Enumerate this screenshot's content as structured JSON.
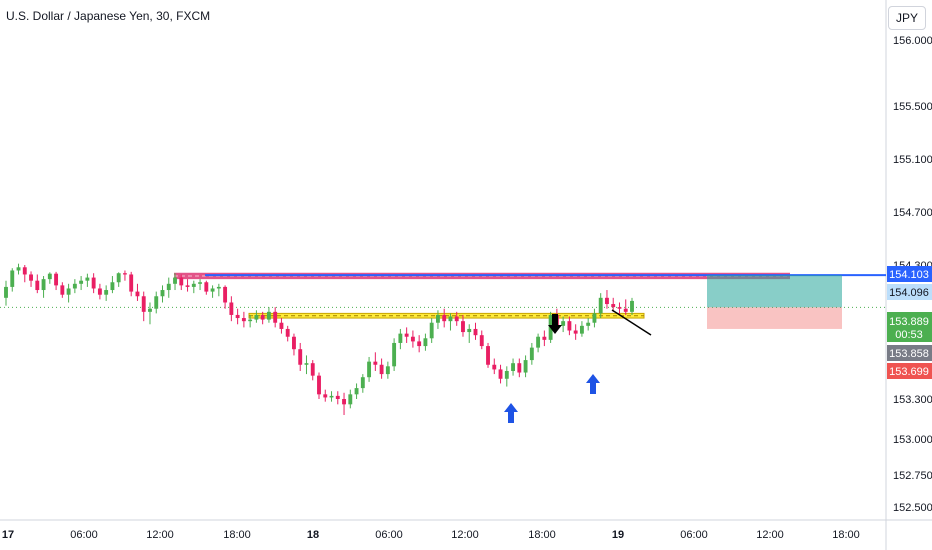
{
  "chart_data": {
    "type": "candlestick",
    "title": "U.S. Dollar / Japanese Yen, 30, FXCM",
    "currency_label": "JPY",
    "y_ticks": [
      "156.000",
      "155.500",
      "155.100",
      "154.700",
      "154.300",
      "154.103",
      "153.300",
      "153.000",
      "152.750",
      "152.500"
    ],
    "x_ticks": [
      "17",
      "06:00",
      "12:00",
      "18:00",
      "18",
      "06:00",
      "12:00",
      "18:00",
      "19",
      "06:00",
      "12:00",
      "18:00"
    ],
    "price_labels": {
      "resistance": "154.103",
      "line": "154.096",
      "current": "153.889",
      "countdown": "00:53",
      "bid": "153.858",
      "stop": "153.699"
    },
    "colors": {
      "up": "#26a69a",
      "down": "#ef5350",
      "candle_up": "#4caf50",
      "candle_down": "#e91e63",
      "resistance_zone": "#d81b60",
      "support_zone": "#ffeb3b",
      "blue_line": "#2962ff",
      "target_zone": "#26a69a",
      "stop_zone": "#ef5350",
      "arrow_blue": "#1e53e5",
      "arrow_black": "#000000"
    },
    "candles": [
      [
        153.95,
        154.06,
        153.9,
        154.02
      ],
      [
        154.02,
        154.23,
        153.99,
        154.18
      ],
      [
        154.18,
        154.31,
        154.1,
        154.25
      ],
      [
        154.25,
        154.3,
        154.05,
        154.1
      ],
      [
        154.1,
        154.16,
        154.02,
        154.06
      ],
      [
        154.06,
        154.1,
        153.98,
        154.0
      ],
      [
        154.0,
        154.09,
        153.95,
        154.07
      ],
      [
        154.07,
        154.14,
        154.04,
        154.11
      ],
      [
        154.11,
        154.15,
        154.0,
        154.03
      ],
      [
        154.03,
        154.05,
        153.95,
        153.97
      ],
      [
        153.97,
        154.04,
        153.92,
        154.01
      ],
      [
        154.01,
        154.07,
        153.98,
        154.04
      ],
      [
        154.04,
        154.09,
        154.0,
        154.06
      ],
      [
        154.06,
        154.11,
        154.02,
        154.08
      ],
      [
        154.08,
        154.12,
        153.98,
        154.01
      ],
      [
        154.01,
        154.04,
        153.94,
        153.97
      ],
      [
        153.97,
        154.03,
        153.93,
        154.0
      ],
      [
        154.0,
        154.09,
        153.98,
        154.05
      ],
      [
        154.05,
        154.14,
        154.02,
        154.12
      ],
      [
        154.12,
        154.18,
        154.06,
        154.1
      ],
      [
        154.1,
        154.15,
        153.96,
        153.99
      ],
      [
        153.99,
        154.04,
        153.93,
        153.96
      ],
      [
        153.96,
        153.99,
        153.8,
        153.86
      ],
      [
        153.86,
        153.92,
        153.78,
        153.88
      ],
      [
        153.88,
        153.99,
        153.85,
        153.96
      ],
      [
        153.96,
        154.03,
        153.92,
        154.0
      ],
      [
        154.0,
        154.08,
        153.95,
        154.04
      ],
      [
        154.04,
        154.12,
        154.0,
        154.08
      ],
      [
        154.08,
        154.1,
        154.0,
        154.03
      ],
      [
        154.03,
        154.07,
        153.99,
        154.02
      ],
      [
        154.02,
        154.06,
        153.98,
        154.04
      ],
      [
        154.04,
        154.07,
        154.0,
        154.05
      ],
      [
        154.05,
        154.06,
        153.97,
        153.99
      ],
      [
        153.99,
        154.03,
        153.95,
        154.01
      ],
      [
        154.01,
        154.04,
        153.96,
        154.02
      ],
      [
        154.02,
        154.03,
        153.88,
        153.92
      ],
      [
        153.92,
        153.96,
        153.8,
        153.84
      ],
      [
        153.84,
        153.88,
        153.78,
        153.82
      ],
      [
        153.82,
        153.86,
        153.76,
        153.8
      ],
      [
        153.8,
        153.84,
        153.76,
        153.81
      ],
      [
        153.81,
        153.87,
        153.79,
        153.84
      ],
      [
        153.84,
        153.86,
        153.78,
        153.81
      ],
      [
        153.81,
        153.89,
        153.79,
        153.86
      ],
      [
        153.86,
        153.89,
        153.76,
        153.79
      ],
      [
        153.79,
        153.82,
        153.72,
        153.75
      ],
      [
        153.75,
        153.77,
        153.67,
        153.7
      ],
      [
        153.7,
        153.72,
        153.58,
        153.62
      ],
      [
        153.62,
        153.66,
        153.48,
        153.52
      ],
      [
        153.52,
        153.58,
        153.46,
        153.53
      ],
      [
        153.53,
        153.55,
        153.42,
        153.45
      ],
      [
        153.45,
        153.47,
        153.3,
        153.33
      ],
      [
        153.33,
        153.36,
        153.28,
        153.31
      ],
      [
        153.31,
        153.35,
        153.28,
        153.32
      ],
      [
        153.32,
        153.35,
        153.26,
        153.3
      ],
      [
        153.3,
        153.34,
        153.18,
        153.26
      ],
      [
        153.26,
        153.36,
        153.23,
        153.33
      ],
      [
        153.33,
        153.4,
        153.3,
        153.37
      ],
      [
        153.37,
        153.46,
        153.34,
        153.44
      ],
      [
        153.44,
        153.57,
        153.41,
        153.54
      ],
      [
        153.54,
        153.6,
        153.48,
        153.52
      ],
      [
        153.52,
        153.56,
        153.43,
        153.46
      ],
      [
        153.46,
        153.54,
        153.43,
        153.51
      ],
      [
        153.51,
        153.69,
        153.48,
        153.66
      ],
      [
        153.66,
        153.75,
        153.62,
        153.72
      ],
      [
        153.72,
        153.76,
        153.66,
        153.7
      ],
      [
        153.7,
        153.74,
        153.63,
        153.67
      ],
      [
        153.67,
        153.71,
        153.6,
        153.64
      ],
      [
        153.64,
        153.72,
        153.61,
        153.69
      ],
      [
        153.69,
        153.82,
        153.66,
        153.79
      ],
      [
        153.79,
        153.87,
        153.75,
        153.84
      ],
      [
        153.84,
        153.88,
        153.76,
        153.8
      ],
      [
        153.8,
        153.85,
        153.74,
        153.83
      ],
      [
        153.83,
        153.86,
        153.77,
        153.8
      ],
      [
        153.8,
        153.84,
        153.7,
        153.73
      ],
      [
        153.73,
        153.78,
        153.66,
        153.75
      ],
      [
        153.75,
        153.79,
        153.68,
        153.71
      ],
      [
        153.71,
        153.74,
        153.62,
        153.64
      ],
      [
        153.64,
        153.66,
        153.5,
        153.52
      ],
      [
        153.52,
        153.56,
        153.46,
        153.49
      ],
      [
        153.49,
        153.52,
        153.4,
        153.43
      ],
      [
        153.43,
        153.51,
        153.38,
        153.48
      ],
      [
        153.48,
        153.56,
        153.45,
        153.53
      ],
      [
        153.53,
        153.56,
        153.44,
        153.47
      ],
      [
        153.47,
        153.58,
        153.44,
        153.55
      ],
      [
        153.55,
        153.66,
        153.52,
        153.63
      ],
      [
        153.63,
        153.72,
        153.6,
        153.7
      ],
      [
        153.7,
        153.74,
        153.64,
        153.68
      ],
      [
        153.68,
        153.86,
        153.66,
        153.84
      ],
      [
        153.84,
        153.88,
        153.74,
        153.77
      ],
      [
        153.77,
        153.83,
        153.73,
        153.8
      ],
      [
        153.8,
        153.83,
        153.71,
        153.74
      ],
      [
        153.74,
        153.78,
        153.68,
        153.72
      ],
      [
        153.72,
        153.8,
        153.7,
        153.77
      ],
      [
        153.77,
        153.82,
        153.74,
        153.79
      ],
      [
        153.79,
        153.88,
        153.76,
        153.85
      ],
      [
        153.85,
        153.98,
        153.82,
        153.95
      ],
      [
        153.95,
        154.0,
        153.88,
        153.91
      ],
      [
        153.91,
        153.95,
        153.86,
        153.89
      ],
      [
        153.89,
        153.92,
        153.84,
        153.88
      ],
      [
        153.88,
        153.94,
        153.84,
        153.86
      ],
      [
        153.86,
        153.95,
        153.84,
        153.93
      ]
    ],
    "candle_x_start_index": 0,
    "drawings": {
      "resistance_zone": [
        154.07,
        154.13
      ],
      "blue_line_level": 154.096,
      "current_level": 153.889,
      "support_zone": [
        153.82,
        153.85
      ],
      "target_zone": [
        153.889,
        154.096
      ],
      "stop_zone": [
        153.75,
        153.889
      ],
      "trendline": [
        [
          153.97,
          153.86
        ]
      ],
      "up_arrows": [
        [
          153.33
        ],
        [
          153.48
        ]
      ],
      "down_arrows": [
        [
          153.93
        ]
      ]
    }
  }
}
